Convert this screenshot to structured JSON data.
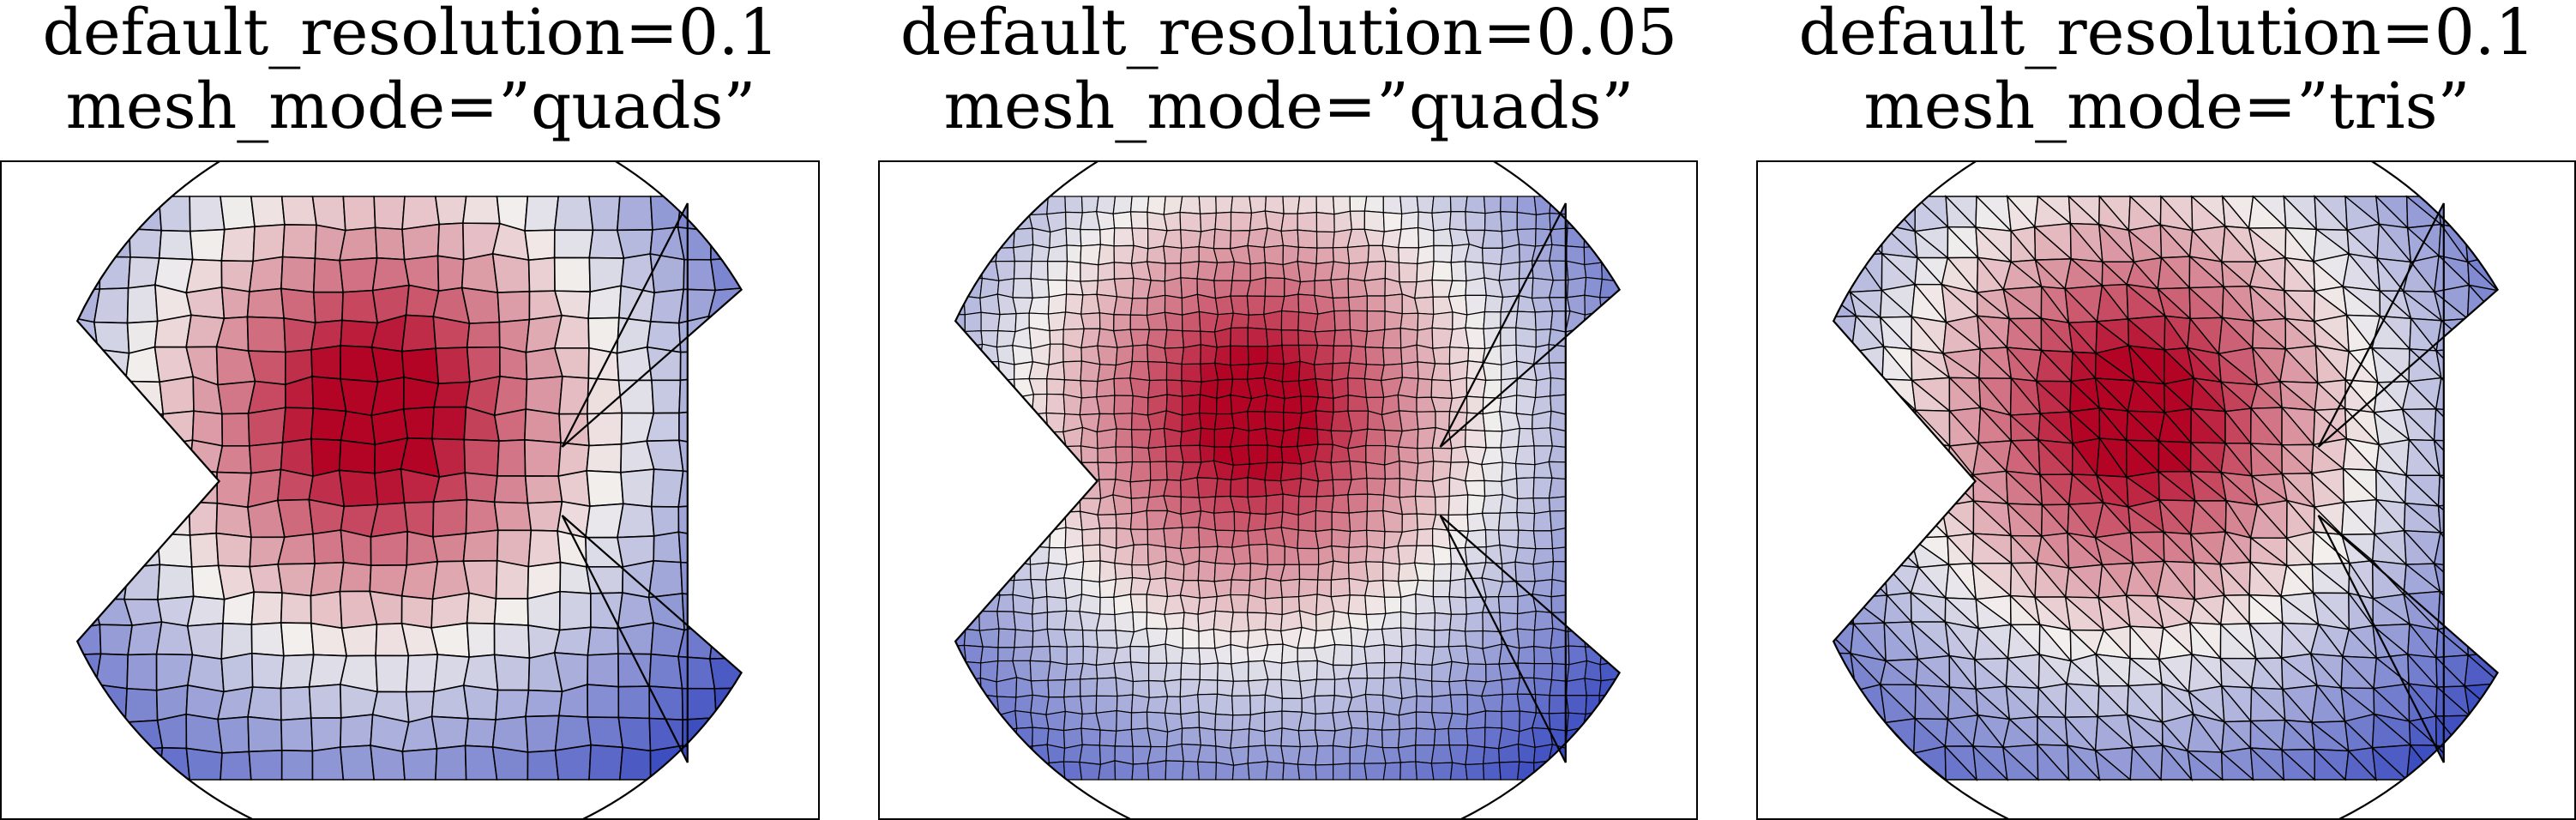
{
  "figure": {
    "panels": [
      {
        "title_line1": "default_resolution=0.1",
        "title_line2": "mesh_mode=”quads”",
        "mesh_type": "quads",
        "cells": 24,
        "hot_radius_frac": 0.26
      },
      {
        "title_line1": "default_resolution=0.05",
        "title_line2": "mesh_mode=”quads”",
        "mesh_type": "quads",
        "cells": 44,
        "hot_radius_frac": 0.22
      },
      {
        "title_line1": "default_resolution=0.1",
        "title_line2": "mesh_mode=”tris”",
        "mesh_type": "tris",
        "cells": 24,
        "hot_radius_frac": 0.24
      }
    ],
    "colormap": {
      "cold": "#3b4cc0",
      "mid": "#f2efed",
      "hot": "#b40426"
    }
  }
}
